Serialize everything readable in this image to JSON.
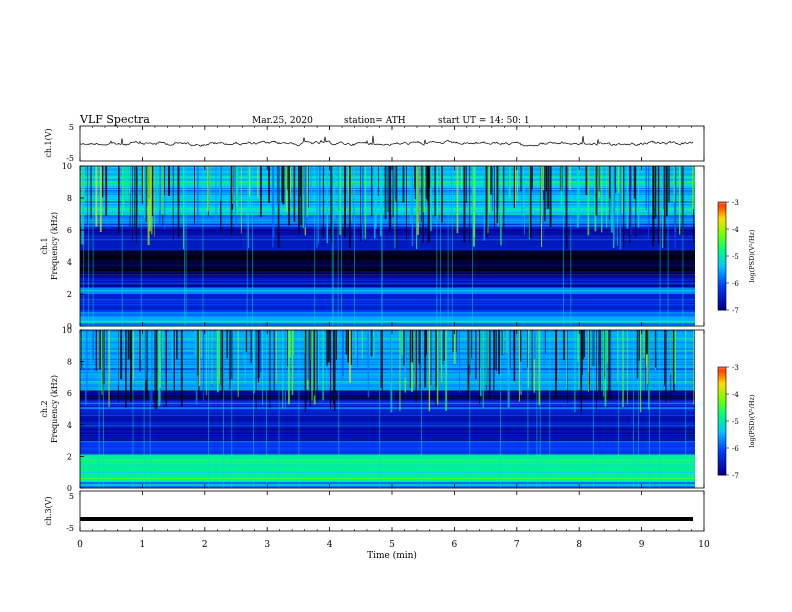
{
  "header": {
    "title": "VLF  Spectra",
    "date": "Mar.25, 2020",
    "station": "station= ATH",
    "start_time": "start  UT  =    14: 50: 1"
  },
  "chart_data": [
    {
      "type": "line",
      "panel": "ch1-waveform",
      "ylabel": "ch.1(V)",
      "ylim": [
        -5,
        5
      ],
      "yticks": [
        "5",
        "-5"
      ],
      "xlim": [
        0,
        10
      ],
      "series": [
        {
          "color": "#000000"
        }
      ]
    },
    {
      "type": "heatmap",
      "panel": "ch1-spectrogram",
      "ylabel": "ch.1\nFrequency  (kHz)",
      "ylim": [
        0,
        10
      ],
      "yticks": [
        "0",
        "2",
        "4",
        "6",
        "8",
        "10"
      ],
      "xlim": [
        0,
        10
      ],
      "bands": [
        {
          "from": 0.0,
          "to": 0.6,
          "level": 0.42
        },
        {
          "from": 0.6,
          "to": 1.0,
          "level": 0.3
        },
        {
          "from": 1.0,
          "to": 2.0,
          "level": 0.22
        },
        {
          "from": 2.0,
          "to": 2.4,
          "level": 0.38
        },
        {
          "from": 2.4,
          "to": 3.2,
          "level": 0.15
        },
        {
          "from": 3.2,
          "to": 4.8,
          "level": 0.04
        },
        {
          "from": 4.8,
          "to": 5.6,
          "level": 0.2
        },
        {
          "from": 5.6,
          "to": 6.2,
          "level": 0.16
        },
        {
          "from": 6.2,
          "to": 7.0,
          "level": 0.36
        },
        {
          "from": 7.0,
          "to": 10.0,
          "level": 0.45
        }
      ],
      "colorbar": {
        "label": "log(PSD)(V²/Hz)",
        "ticks": [
          "-3",
          "-4",
          "-5",
          "-6",
          "-7"
        ],
        "range": [
          -7,
          -3
        ]
      }
    },
    {
      "type": "heatmap",
      "panel": "ch2-spectrogram",
      "ylabel": "ch.2\nFrequency  (kHz)",
      "ylim": [
        0,
        10
      ],
      "yticks": [
        "0",
        "2",
        "4",
        "6",
        "8",
        "10"
      ],
      "xlim": [
        0,
        10
      ],
      "bands": [
        {
          "from": 0.0,
          "to": 0.4,
          "level": 0.35
        },
        {
          "from": 0.4,
          "to": 2.2,
          "level": 0.55
        },
        {
          "from": 2.2,
          "to": 3.0,
          "level": 0.28
        },
        {
          "from": 3.0,
          "to": 4.6,
          "level": 0.18
        },
        {
          "from": 4.6,
          "to": 5.4,
          "level": 0.26
        },
        {
          "from": 5.4,
          "to": 6.2,
          "level": 0.14
        },
        {
          "from": 6.2,
          "to": 7.0,
          "level": 0.4
        },
        {
          "from": 7.0,
          "to": 10.0,
          "level": 0.42
        }
      ],
      "colorbar": {
        "label": "log(PSD)(V²/Hz)",
        "ticks": [
          "-3",
          "-4",
          "-5",
          "-6",
          "-7"
        ],
        "range": [
          -7,
          -3
        ]
      }
    },
    {
      "type": "line",
      "panel": "ch3-waveform",
      "ylabel": "ch.3(V)",
      "ylim": [
        -5,
        5
      ],
      "yticks": [
        "5",
        "-5"
      ],
      "xlim": [
        0,
        10
      ],
      "series": [
        {
          "color": "#000000",
          "values": [
            -2,
            -2
          ]
        }
      ]
    }
  ],
  "x_axis": {
    "label": "Time  (min)",
    "ticks": [
      "0",
      "1",
      "2",
      "3",
      "4",
      "5",
      "6",
      "7",
      "8",
      "9",
      "10"
    ],
    "range": [
      0,
      10
    ]
  }
}
